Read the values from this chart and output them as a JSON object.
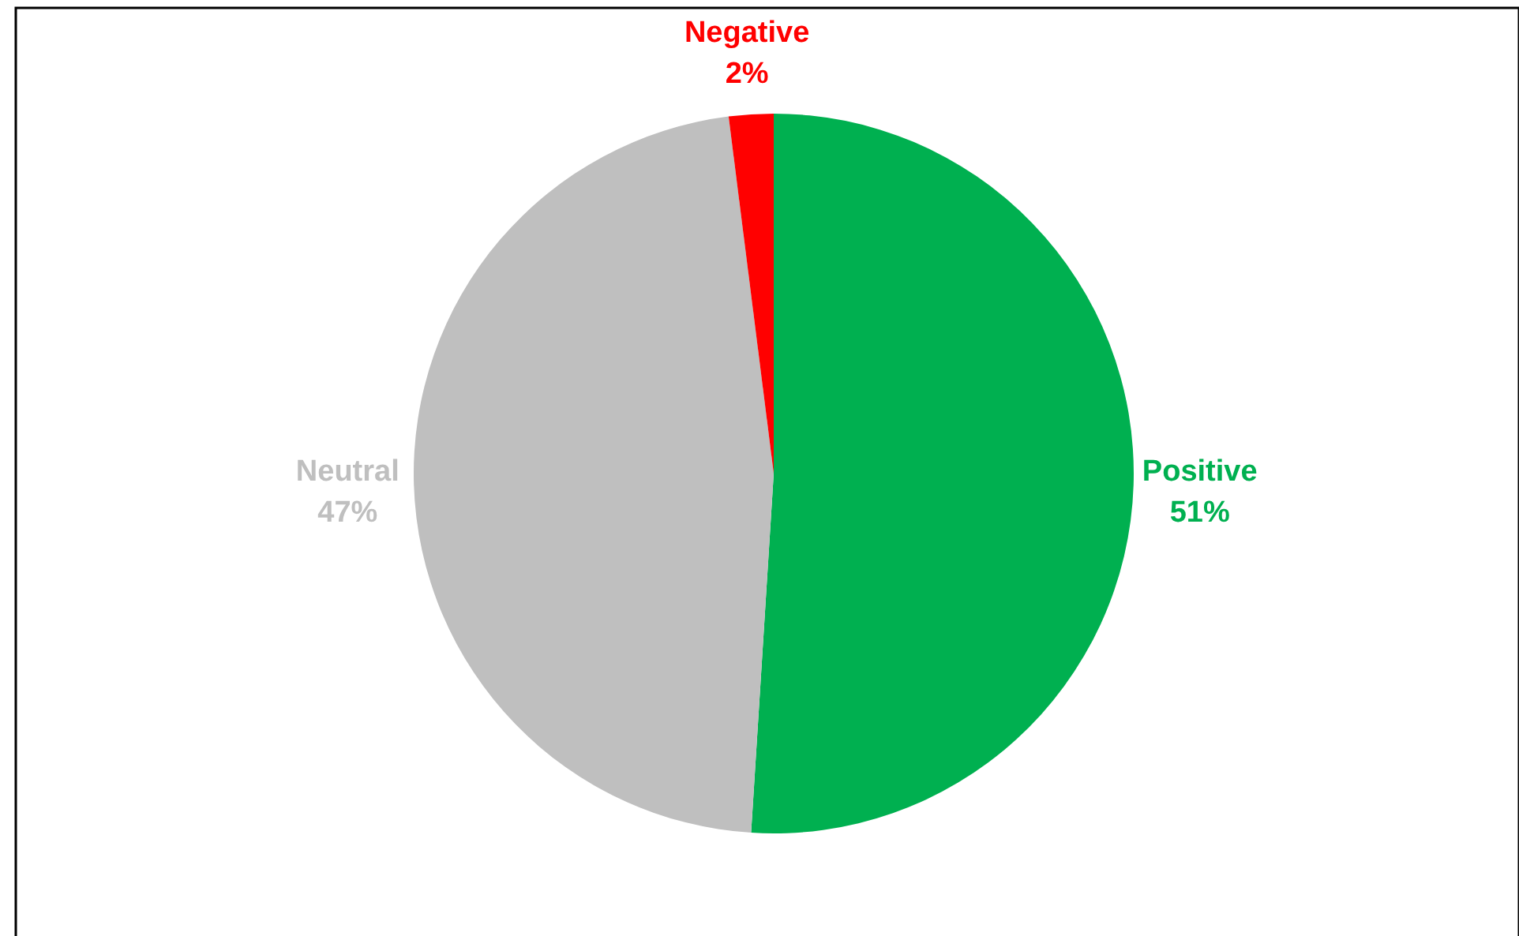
{
  "chart_data": {
    "type": "pie",
    "categories": [
      "Positive",
      "Neutral",
      "Negative"
    ],
    "values": [
      51,
      47,
      2
    ],
    "colors": [
      "#00b050",
      "#bfbfbf",
      "#ff0000"
    ],
    "value_labels": [
      "51%",
      "47%",
      "2%"
    ]
  }
}
